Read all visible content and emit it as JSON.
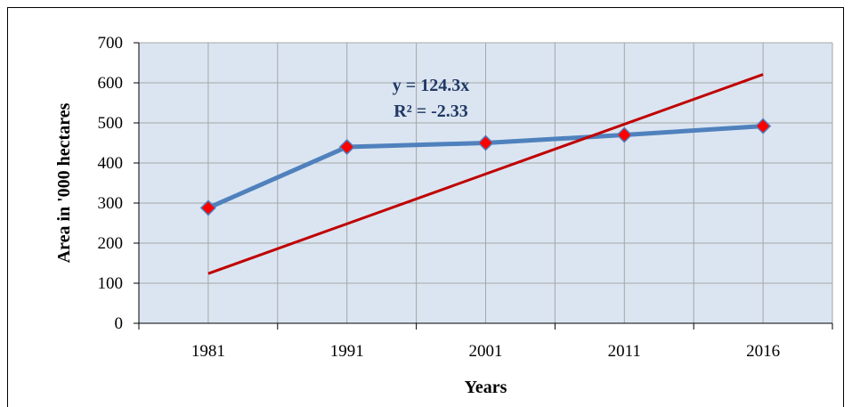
{
  "chart_data": {
    "type": "line",
    "x": [
      "1981",
      "1991",
      "2001",
      "2011",
      "2016"
    ],
    "series": [
      {
        "values": [
          288,
          440,
          450,
          470,
          492
        ],
        "color": "#4F81BD",
        "marker_color": "#FF0000",
        "marker": "diamond"
      }
    ],
    "trendline": {
      "type": "linear",
      "start": 124,
      "end": 621,
      "color": "#C00000"
    },
    "annotation": {
      "equation": "y = 124.3x",
      "r_squared": "R² = -2.33",
      "color": "#1F3864"
    },
    "xlabel": "Years",
    "ylabel": "Area in '000 hectares",
    "yticks": [
      0,
      100,
      200,
      300,
      400,
      500,
      600,
      700
    ],
    "ylim": [
      0,
      700
    ],
    "grid": true,
    "plot_background": "#DBE5F1",
    "grid_color": "#A6A6A6"
  }
}
